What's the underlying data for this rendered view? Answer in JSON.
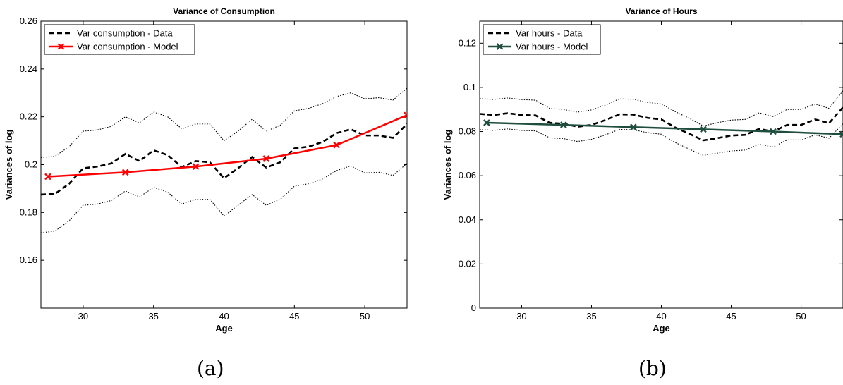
{
  "chart_data": [
    {
      "type": "line",
      "title": "Variance of Consumption",
      "xlabel": "Age",
      "ylabel": "Variances of log",
      "xlim": [
        27,
        53
      ],
      "ylim": [
        0.14,
        0.26
      ],
      "xticks": [
        30,
        35,
        40,
        45,
        50
      ],
      "yticks": [
        0.16,
        0.18,
        0.2,
        0.22,
        0.24,
        0.26
      ],
      "ytick_labels": [
        "0.16",
        "0.18",
        "0.2",
        "0.22",
        "0.24",
        "0.26"
      ],
      "legend_position": "top-left",
      "panel_label": "(a)",
      "series": [
        {
          "name": "Var consumption - Data",
          "style": "dashed",
          "color": "#000000",
          "legend": true,
          "x": [
            27,
            28,
            29,
            30,
            31,
            32,
            33,
            34,
            35,
            36,
            37,
            38,
            39,
            40,
            41,
            42,
            43,
            44,
            45,
            46,
            47,
            48,
            49,
            50,
            51,
            52,
            53
          ],
          "y": [
            0.1875,
            0.1878,
            0.192,
            0.1985,
            0.1992,
            0.2005,
            0.2045,
            0.2015,
            0.206,
            0.204,
            0.199,
            0.2015,
            0.201,
            0.1943,
            0.1985,
            0.2032,
            0.1988,
            0.201,
            0.2068,
            0.2075,
            0.2095,
            0.2132,
            0.2148,
            0.2122,
            0.2122,
            0.2112,
            0.217
          ]
        },
        {
          "name": "Var consumption - Model",
          "style": "solid-x",
          "color": "#ff0000",
          "legend": true,
          "x": [
            27.5,
            33,
            38,
            43,
            48,
            53
          ],
          "y": [
            0.195,
            0.1968,
            0.1992,
            0.2025,
            0.2082,
            0.2207
          ]
        },
        {
          "name": "",
          "style": "dotted",
          "color": "#000000",
          "legend": false,
          "x": [
            27,
            28,
            29,
            30,
            31,
            32,
            33,
            34,
            35,
            36,
            37,
            38,
            39,
            40,
            41,
            42,
            43,
            44,
            45,
            46,
            47,
            48,
            49,
            50,
            51,
            52,
            53
          ],
          "y": [
            0.203,
            0.2035,
            0.2075,
            0.214,
            0.2145,
            0.216,
            0.22,
            0.2175,
            0.222,
            0.22,
            0.215,
            0.217,
            0.217,
            0.21,
            0.214,
            0.219,
            0.214,
            0.2165,
            0.2225,
            0.2235,
            0.2255,
            0.2285,
            0.23,
            0.2275,
            0.228,
            0.227,
            0.232
          ]
        },
        {
          "name": "",
          "style": "dotted",
          "color": "#000000",
          "legend": false,
          "x": [
            27,
            28,
            29,
            30,
            31,
            32,
            33,
            34,
            35,
            36,
            37,
            38,
            39,
            40,
            41,
            42,
            43,
            44,
            45,
            46,
            47,
            48,
            49,
            50,
            51,
            52,
            53
          ],
          "y": [
            0.1715,
            0.1722,
            0.1765,
            0.183,
            0.1835,
            0.185,
            0.189,
            0.1865,
            0.1905,
            0.1885,
            0.1835,
            0.1855,
            0.1855,
            0.1785,
            0.183,
            0.1875,
            0.183,
            0.1855,
            0.191,
            0.192,
            0.194,
            0.1975,
            0.1995,
            0.1965,
            0.1968,
            0.1955,
            0.2005
          ]
        }
      ]
    },
    {
      "type": "line",
      "title": "Variance of Hours",
      "xlabel": "Age",
      "ylabel": "Variances of log",
      "xlim": [
        27,
        53
      ],
      "ylim": [
        0,
        0.13
      ],
      "xticks": [
        30,
        35,
        40,
        45,
        50
      ],
      "yticks": [
        0,
        0.02,
        0.04,
        0.06,
        0.08,
        0.1,
        0.12
      ],
      "ytick_labels": [
        "0",
        "0.02",
        "0.04",
        "0.06",
        "0.08",
        "0.1",
        "0.12"
      ],
      "legend_position": "top-left",
      "panel_label": "(b)",
      "series": [
        {
          "name": "Var hours - Data",
          "style": "dashed",
          "color": "#000000",
          "legend": true,
          "x": [
            27,
            28,
            29,
            30,
            31,
            32,
            33,
            34,
            35,
            36,
            37,
            38,
            39,
            40,
            41,
            42,
            43,
            44,
            45,
            46,
            47,
            48,
            49,
            50,
            51,
            52,
            53
          ],
          "y": [
            0.088,
            0.0875,
            0.0883,
            0.0875,
            0.0873,
            0.084,
            0.0835,
            0.0822,
            0.083,
            0.0852,
            0.0878,
            0.0877,
            0.0862,
            0.0855,
            0.0818,
            0.079,
            0.076,
            0.077,
            0.0782,
            0.0785,
            0.0812,
            0.08,
            0.083,
            0.083,
            0.0855,
            0.0838,
            0.091
          ]
        },
        {
          "name": "Var hours - Model",
          "style": "solid-x",
          "color": "#1f4e3d",
          "legend": true,
          "x": [
            27.5,
            33,
            38,
            43,
            48,
            53
          ],
          "y": [
            0.084,
            0.083,
            0.082,
            0.081,
            0.08,
            0.0788
          ]
        },
        {
          "name": "",
          "style": "dotted",
          "color": "#000000",
          "legend": false,
          "x": [
            27,
            28,
            29,
            30,
            31,
            32,
            33,
            34,
            35,
            36,
            37,
            38,
            39,
            40,
            41,
            42,
            43,
            44,
            45,
            46,
            47,
            48,
            49,
            50,
            51,
            52,
            53
          ],
          "y": [
            0.095,
            0.0945,
            0.0952,
            0.0945,
            0.0942,
            0.0905,
            0.09,
            0.0888,
            0.0898,
            0.092,
            0.0948,
            0.0946,
            0.0932,
            0.0925,
            0.089,
            0.086,
            0.0825,
            0.084,
            0.0852,
            0.0855,
            0.0885,
            0.0868,
            0.09,
            0.09,
            0.0925,
            0.0905,
            0.0985
          ]
        },
        {
          "name": "",
          "style": "dotted",
          "color": "#000000",
          "legend": false,
          "x": [
            27,
            28,
            29,
            30,
            31,
            32,
            33,
            34,
            35,
            36,
            37,
            38,
            39,
            40,
            41,
            42,
            43,
            44,
            45,
            46,
            47,
            48,
            49,
            50,
            51,
            52,
            53
          ],
          "y": [
            0.081,
            0.0805,
            0.0812,
            0.0805,
            0.0803,
            0.0772,
            0.0768,
            0.0755,
            0.0765,
            0.0785,
            0.081,
            0.0808,
            0.0795,
            0.0788,
            0.075,
            0.072,
            0.0692,
            0.0702,
            0.0712,
            0.0716,
            0.0742,
            0.073,
            0.0762,
            0.0762,
            0.0785,
            0.077,
            0.0835
          ]
        }
      ]
    }
  ]
}
